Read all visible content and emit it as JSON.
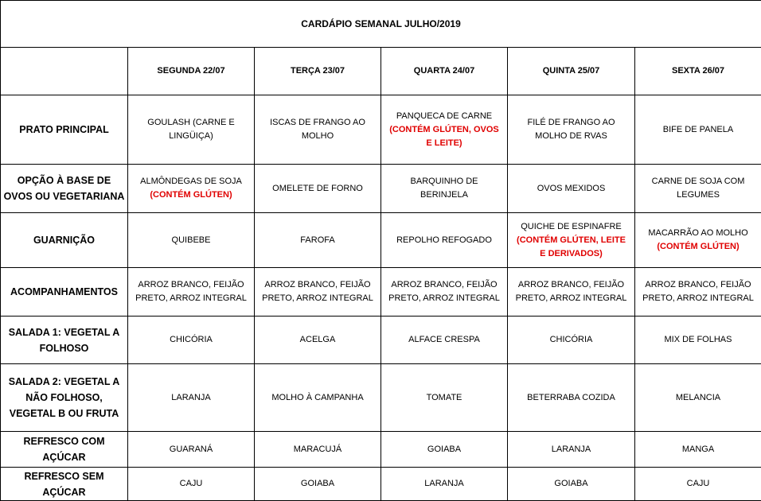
{
  "title": "CARDÁPIO SEMANAL JULHO/2019",
  "days": [
    "SEGUNDA   22/07",
    "TERÇA 23/07",
    "QUARTA 24/07",
    "QUINTA 25/07",
    "SEXTA 26/07"
  ],
  "warning_color": "#e00000",
  "rows": [
    {
      "label": "PRATO PRINCIPAL",
      "cells": [
        {
          "text": "GOULASH (CARNE E LINGÜIÇA)"
        },
        {
          "text": "ISCAS DE FRANGO AO MOLHO"
        },
        {
          "text": "PANQUECA DE CARNE",
          "warning": "(CONTÉM GLÚTEN, OVOS E LEITE)"
        },
        {
          "text": "FILÉ DE FRANGO AO MOLHO DE RVAS"
        },
        {
          "text": "BIFE DE PANELA"
        }
      ]
    },
    {
      "label": "OPÇÃO À BASE DE OVOS OU VEGETARIANA",
      "cells": [
        {
          "text": "ALMÔNDEGAS DE SOJA",
          "warning": "(CONTÉM GLÚTEN)"
        },
        {
          "text": "OMELETE DE FORNO"
        },
        {
          "text": "BARQUINHO DE BERINJELA"
        },
        {
          "text": "OVOS MEXIDOS"
        },
        {
          "text": "CARNE DE SOJA COM LEGUMES"
        }
      ]
    },
    {
      "label": "GUARNIÇÃO",
      "cells": [
        {
          "text": "QUIBEBE"
        },
        {
          "text": "FAROFA"
        },
        {
          "text": "REPOLHO REFOGADO"
        },
        {
          "text": "QUICHE DE ESPINAFRE",
          "warning": "(CONTÉM GLÚTEN, LEITE E DERIVADOS)"
        },
        {
          "text": "MACARRÃO AO MOLHO",
          "warning": "(CONTÉM GLÚTEN)"
        }
      ]
    },
    {
      "label": "ACOMPANHAMENTOS",
      "cells": [
        {
          "text": "ARROZ BRANCO, FEIJÃO PRETO, ARROZ INTEGRAL"
        },
        {
          "text": "ARROZ BRANCO, FEIJÃO PRETO, ARROZ INTEGRAL"
        },
        {
          "text": "ARROZ BRANCO, FEIJÃO PRETO, ARROZ INTEGRAL"
        },
        {
          "text": "ARROZ BRANCO, FEIJÃO PRETO, ARROZ INTEGRAL"
        },
        {
          "text": "ARROZ BRANCO, FEIJÃO PRETO, ARROZ INTEGRAL"
        }
      ]
    },
    {
      "label": "SALADA 1: VEGETAL A FOLHOSO",
      "cells": [
        {
          "text": "CHICÓRIA"
        },
        {
          "text": "ACELGA"
        },
        {
          "text": "ALFACE CRESPA"
        },
        {
          "text": "CHICÓRIA"
        },
        {
          "text": "MIX DE FOLHAS"
        }
      ]
    },
    {
      "label": "SALADA 2: VEGETAL A NÃO FOLHOSO, VEGETAL B OU FRUTA",
      "cells": [
        {
          "text": "LARANJA"
        },
        {
          "text": "MOLHO À CAMPANHA"
        },
        {
          "text": "TOMATE"
        },
        {
          "text": "BETERRABA COZIDA"
        },
        {
          "text": "MELANCIA"
        }
      ]
    },
    {
      "label": "REFRESCO COM AÇÚCAR",
      "cells": [
        {
          "text": "GUARANÁ"
        },
        {
          "text": "MARACUJÁ"
        },
        {
          "text": "GOIABA"
        },
        {
          "text": "LARANJA"
        },
        {
          "text": "MANGA"
        }
      ]
    },
    {
      "label": "REFRESCO SEM AÇÚCAR",
      "cells": [
        {
          "text": "CAJU"
        },
        {
          "text": "GOIABA"
        },
        {
          "text": "LARANJA"
        },
        {
          "text": "GOIABA"
        },
        {
          "text": "CAJU"
        }
      ]
    }
  ]
}
